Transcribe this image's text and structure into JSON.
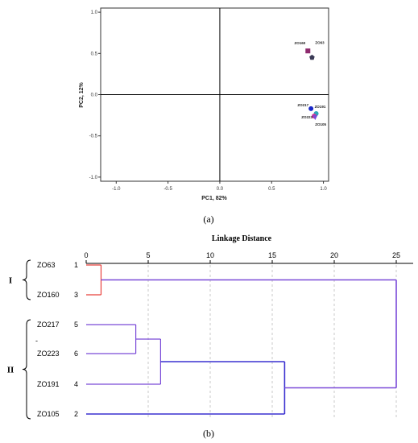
{
  "chart_data": [
    {
      "type": "scatter",
      "panel_label": "(a)",
      "xlabel": "PC1, 82%",
      "ylabel": "PC2, 12%",
      "xlim": [
        -1.15,
        1.05
      ],
      "ylim": [
        -1.05,
        1.05
      ],
      "x_ticks": [
        -1.0,
        -0.5,
        0.0,
        0.5,
        1.0
      ],
      "x_tick_labels": [
        "-1.0",
        "-0.5",
        "0.0",
        "0.5",
        "1.0"
      ],
      "y_ticks": [
        -1.0,
        -0.5,
        0.0,
        0.5,
        1.0
      ],
      "y_tick_labels": [
        "-1.0",
        "-0.5",
        "0.0",
        "0.5",
        "1.0"
      ],
      "grid": false,
      "points": [
        {
          "name": "ZO160",
          "x": 0.85,
          "y": 0.53,
          "marker": "square",
          "color": "#8e2a6e"
        },
        {
          "name": "ZO63",
          "x": 0.89,
          "y": 0.45,
          "marker": "pentagon",
          "color": "#3a3a55"
        },
        {
          "name": "ZO217",
          "x": 0.88,
          "y": -0.17,
          "marker": "circle",
          "color": "#1a28c8"
        },
        {
          "name": "ZO191",
          "x": 0.93,
          "y": -0.23,
          "marker": "circle",
          "color": "#2aa8b8"
        },
        {
          "name": "ZO223",
          "x": 0.91,
          "y": -0.26,
          "marker": "circle",
          "color": "#d0309a"
        },
        {
          "name": "ZO105",
          "x": 0.92,
          "y": -0.28,
          "marker": "triangle",
          "color": "#7a4ad8"
        }
      ]
    },
    {
      "type": "dendrogram",
      "panel_label": "(b)",
      "title": "Linkage Distance",
      "xlim": [
        0,
        25
      ],
      "x_ticks": [
        0,
        5,
        10,
        15,
        20,
        25
      ],
      "x_tick_labels": [
        "0",
        "5",
        "10",
        "15",
        "20",
        "25"
      ],
      "leaves": [
        {
          "label": "ZO63",
          "index": "1"
        },
        {
          "label": "ZO160",
          "index": "3"
        },
        {
          "label": "ZO217",
          "index": "5"
        },
        {
          "label": "ZO223",
          "index": "6"
        },
        {
          "label": "ZO191",
          "index": "4"
        },
        {
          "label": "ZO105",
          "index": "2"
        }
      ],
      "merges": [
        {
          "a": 0,
          "b": 1,
          "height": 1.2,
          "color": "#e8403a"
        },
        {
          "a": 2,
          "b": 3,
          "height": 4,
          "color": "#7a4ad8"
        },
        {
          "a": "m1",
          "b": 4,
          "height": 6,
          "color": "#7a4ad8"
        },
        {
          "a": "m2",
          "b": 5,
          "height": 16,
          "color": "#3a30d0"
        },
        {
          "a": "m0",
          "b": "m3",
          "height": 25,
          "color": "#7a4ad8"
        }
      ],
      "groups": [
        {
          "label": "I",
          "leaves": [
            0,
            1
          ]
        },
        {
          "label": "II",
          "leaves": [
            2,
            3,
            4,
            5
          ]
        }
      ],
      "stray_mark": "-"
    }
  ]
}
